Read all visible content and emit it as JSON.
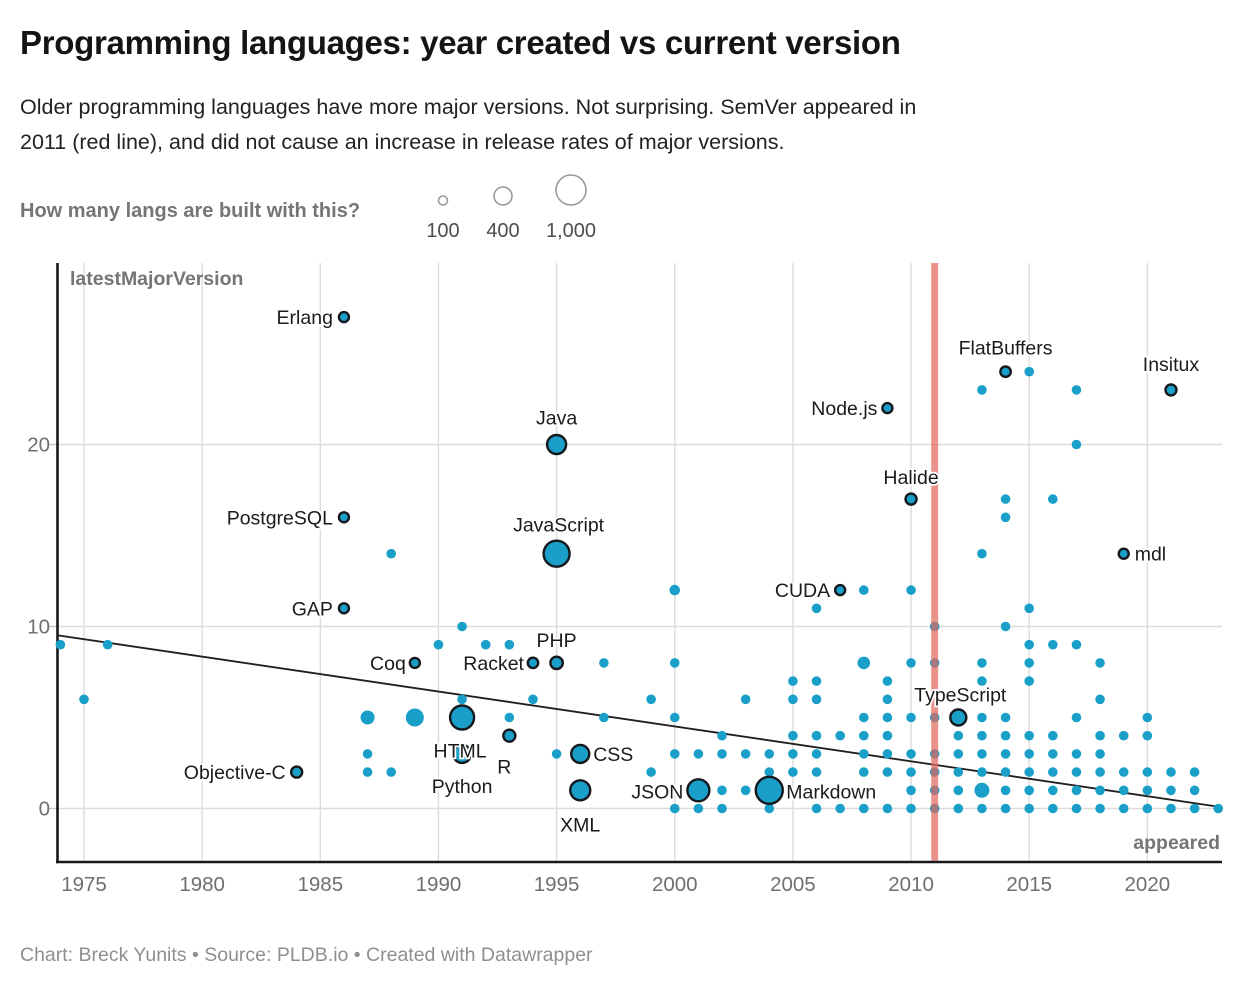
{
  "header": {
    "title": "Programming languages: year created vs current version",
    "subtitle_lines": [
      "Older programming languages have more major versions. Not surprising. SemVer appeared in",
      "2011 (red line), and did not cause an increase in release rates of major versions."
    ]
  },
  "legend": {
    "question": "How many langs are built with this?",
    "sizes": [
      {
        "label": "100",
        "r": 4.5
      },
      {
        "label": "400",
        "r": 9
      },
      {
        "label": "1,000",
        "r": 15
      }
    ]
  },
  "chart_data": {
    "type": "scatter",
    "xlabel": "appeared",
    "ylabel": "latestMajorVersion",
    "x_ticks": [
      1975,
      1980,
      1985,
      1990,
      1995,
      2000,
      2005,
      2010,
      2015,
      2020
    ],
    "y_ticks": [
      0,
      10,
      20
    ],
    "x_domain": [
      1973.8,
      2023.3
    ],
    "y_domain": [
      -3,
      30.2
    ],
    "grid": true,
    "point_color": "#1aa0c8",
    "point_outline_color": "#15181c",
    "semver_line_color": "#e26a5f",
    "semver_line_x": 2011,
    "trend_line": {
      "x1": 1973.86,
      "y1": 9.52,
      "x2": 2023.16,
      "y2": 0.07
    },
    "points": [
      [
        1974,
        9
      ],
      [
        1975,
        6
      ],
      [
        1976,
        9
      ],
      [
        1984,
        2,
        5.5,
        "Objective-C",
        "end",
        -11,
        7
      ],
      [
        1986,
        27,
        5,
        "Erlang",
        "end",
        -11,
        7
      ],
      [
        1986,
        16,
        5,
        "PostgreSQL",
        "end",
        -11,
        7
      ],
      [
        1986,
        11,
        5,
        "GAP",
        "end",
        -11,
        7
      ],
      [
        1987,
        5,
        7
      ],
      [
        1987,
        3
      ],
      [
        1987,
        2
      ],
      [
        1988,
        14
      ],
      [
        1988,
        2
      ],
      [
        1989,
        8,
        5,
        "Coq",
        "end",
        -9,
        7
      ],
      [
        1989,
        5,
        9
      ],
      [
        1990,
        9
      ],
      [
        1991,
        10
      ],
      [
        1991,
        6
      ],
      [
        1991,
        5,
        12,
        "HTML",
        "middle",
        -2,
        40
      ],
      [
        1991,
        3,
        9,
        "Python",
        "middle",
        0,
        39
      ],
      [
        1992,
        9
      ],
      [
        1993,
        9
      ],
      [
        1993,
        5
      ],
      [
        1993,
        4,
        6,
        "R",
        "middle",
        -5,
        38
      ],
      [
        1994,
        8,
        5.2,
        "Racket",
        "end",
        -9,
        7
      ],
      [
        1994,
        6
      ],
      [
        1995,
        20,
        9.5,
        "Java",
        "middle",
        0,
        -20
      ],
      [
        1995,
        14,
        13,
        "JavaScript",
        "middle",
        2,
        -22
      ],
      [
        1995,
        8,
        6.2,
        "PHP",
        "middle",
        0,
        -16
      ],
      [
        1995,
        3
      ],
      [
        1996,
        3,
        9,
        "CSS",
        "start",
        13,
        7
      ],
      [
        1996,
        1,
        10,
        "XML",
        "middle",
        0,
        41
      ],
      [
        1997,
        8
      ],
      [
        1997,
        5
      ],
      [
        1999,
        6
      ],
      [
        1999,
        2
      ],
      [
        2000,
        12,
        5.3
      ],
      [
        2000,
        8
      ],
      [
        2000,
        5
      ],
      [
        2000,
        3
      ],
      [
        2000,
        0
      ],
      [
        2001,
        1,
        11,
        "JSON",
        "end",
        -15,
        8
      ],
      [
        2001,
        3
      ],
      [
        2001,
        0
      ],
      [
        2002,
        4
      ],
      [
        2002,
        3
      ],
      [
        2002,
        1
      ],
      [
        2002,
        0
      ],
      [
        2003,
        6
      ],
      [
        2003,
        3
      ],
      [
        2003,
        1
      ],
      [
        2004,
        1,
        13.5,
        "Markdown",
        "start",
        17,
        8
      ],
      [
        2004,
        3
      ],
      [
        2004,
        2
      ],
      [
        2004,
        0
      ],
      [
        2005,
        7
      ],
      [
        2005,
        6
      ],
      [
        2005,
        4
      ],
      [
        2005,
        3
      ],
      [
        2005,
        2
      ],
      [
        2006,
        11
      ],
      [
        2006,
        7
      ],
      [
        2006,
        6
      ],
      [
        2006,
        4
      ],
      [
        2006,
        3
      ],
      [
        2006,
        2
      ],
      [
        2006,
        0
      ],
      [
        2007,
        12,
        5,
        "CUDA",
        "end",
        -10,
        7
      ],
      [
        2007,
        4
      ],
      [
        2007,
        0
      ],
      [
        2008,
        12
      ],
      [
        2008,
        8,
        6.3
      ],
      [
        2008,
        5
      ],
      [
        2008,
        4
      ],
      [
        2008,
        3
      ],
      [
        2008,
        2
      ],
      [
        2008,
        0
      ],
      [
        2009,
        22,
        5,
        "Node.js",
        "end",
        -10,
        7
      ],
      [
        2009,
        7
      ],
      [
        2009,
        6
      ],
      [
        2009,
        5
      ],
      [
        2009,
        4
      ],
      [
        2009,
        3
      ],
      [
        2009,
        2
      ],
      [
        2009,
        0
      ],
      [
        2010,
        17,
        5.5,
        "Halide",
        "middle",
        0,
        -15
      ],
      [
        2010,
        12
      ],
      [
        2010,
        8
      ],
      [
        2010,
        5
      ],
      [
        2010,
        3
      ],
      [
        2010,
        2
      ],
      [
        2010,
        1
      ],
      [
        2010,
        0
      ],
      [
        2011,
        10
      ],
      [
        2011,
        8
      ],
      [
        2011,
        5
      ],
      [
        2011,
        3
      ],
      [
        2011,
        2
      ],
      [
        2011,
        1
      ],
      [
        2011,
        0
      ],
      [
        2012,
        5,
        8,
        "TypeScript",
        "middle",
        2,
        -16
      ],
      [
        2012,
        4
      ],
      [
        2012,
        3
      ],
      [
        2012,
        2
      ],
      [
        2012,
        1
      ],
      [
        2012,
        0
      ],
      [
        2013,
        23
      ],
      [
        2013,
        14
      ],
      [
        2013,
        8
      ],
      [
        2013,
        7
      ],
      [
        2013,
        5
      ],
      [
        2013,
        4
      ],
      [
        2013,
        3
      ],
      [
        2013,
        2
      ],
      [
        2013,
        1,
        7.5
      ],
      [
        2013,
        0
      ],
      [
        2014,
        24,
        5.2,
        "FlatBuffers",
        "middle",
        0,
        -17
      ],
      [
        2014,
        17
      ],
      [
        2014,
        16
      ],
      [
        2014,
        10
      ],
      [
        2014,
        5
      ],
      [
        2014,
        4
      ],
      [
        2014,
        3
      ],
      [
        2014,
        2
      ],
      [
        2014,
        1
      ],
      [
        2014,
        0
      ],
      [
        2015,
        24
      ],
      [
        2015,
        11
      ],
      [
        2015,
        9
      ],
      [
        2015,
        8
      ],
      [
        2015,
        7
      ],
      [
        2015,
        4
      ],
      [
        2015,
        3
      ],
      [
        2015,
        2
      ],
      [
        2015,
        1
      ],
      [
        2015,
        0
      ],
      [
        2016,
        17
      ],
      [
        2016,
        9
      ],
      [
        2016,
        4
      ],
      [
        2016,
        3
      ],
      [
        2016,
        2
      ],
      [
        2016,
        1
      ],
      [
        2016,
        0
      ],
      [
        2017,
        23
      ],
      [
        2017,
        20
      ],
      [
        2017,
        9
      ],
      [
        2017,
        5
      ],
      [
        2017,
        3
      ],
      [
        2017,
        2
      ],
      [
        2017,
        1
      ],
      [
        2017,
        0
      ],
      [
        2018,
        8
      ],
      [
        2018,
        6
      ],
      [
        2018,
        4
      ],
      [
        2018,
        3
      ],
      [
        2018,
        2
      ],
      [
        2018,
        1
      ],
      [
        2018,
        0
      ],
      [
        2019,
        14,
        5,
        "mdl",
        "start",
        11,
        7
      ],
      [
        2019,
        4
      ],
      [
        2019,
        2
      ],
      [
        2019,
        1
      ],
      [
        2019,
        0
      ],
      [
        2020,
        5
      ],
      [
        2020,
        4
      ],
      [
        2020,
        2
      ],
      [
        2020,
        1
      ],
      [
        2020,
        0
      ],
      [
        2021,
        23,
        5.5,
        "Insitux",
        "middle",
        0,
        -19
      ],
      [
        2021,
        2
      ],
      [
        2021,
        1
      ],
      [
        2021,
        0
      ],
      [
        2022,
        2
      ],
      [
        2022,
        1
      ],
      [
        2022,
        0
      ],
      [
        2023,
        0
      ]
    ]
  },
  "footer": {
    "credit": "Chart: Breck Yunits • Source: PLDB.io • Created with Datawrapper"
  }
}
